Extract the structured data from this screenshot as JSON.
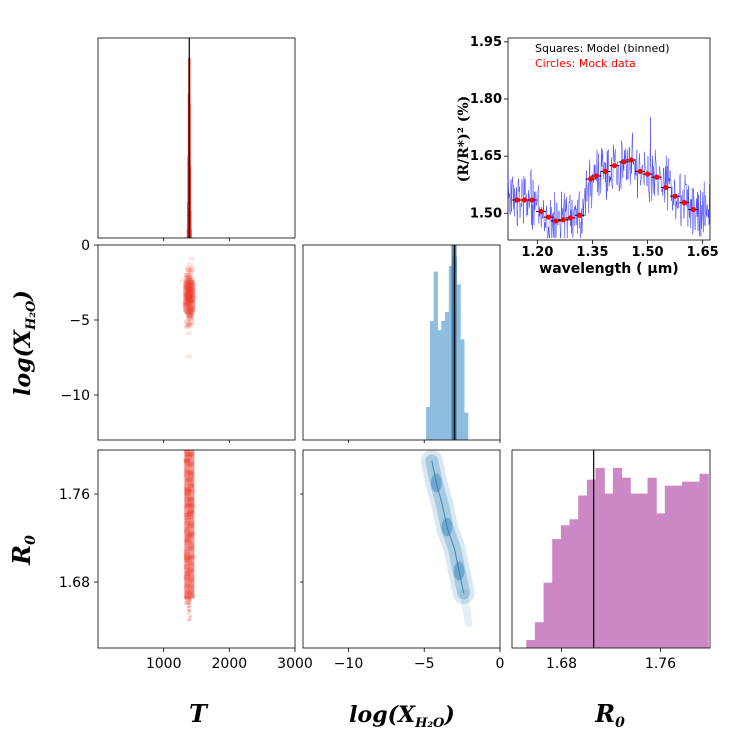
{
  "chart_data": [
    {
      "type": "histogram",
      "name": "T marginal posterior",
      "xlim": [
        0,
        3000
      ],
      "x_ticks": [
        "1000",
        "2000",
        "3000"
      ],
      "truth": 1390,
      "bins": [
        {
          "x": 1370,
          "h": 0.05
        },
        {
          "x": 1375,
          "h": 0.2
        },
        {
          "x": 1380,
          "h": 0.45
        },
        {
          "x": 1385,
          "h": 0.8
        },
        {
          "x": 1390,
          "h": 1.0
        },
        {
          "x": 1395,
          "h": 0.75
        },
        {
          "x": 1400,
          "h": 0.4
        },
        {
          "x": 1405,
          "h": 0.15
        },
        {
          "x": 1410,
          "h": 0.05
        }
      ],
      "color": "#d73027"
    },
    {
      "type": "scatter_density",
      "name": "T vs log(X_H2O)",
      "xlim": [
        0,
        3000
      ],
      "ylim": [
        -13,
        0
      ],
      "y_ticks": [
        "0",
        "−5",
        "−10"
      ],
      "y_tick_values": [
        0,
        -5,
        -10
      ],
      "center": [
        1390,
        -3.5
      ],
      "spread": [
        45,
        0.9
      ],
      "color": "#ef3b2c"
    },
    {
      "type": "histogram",
      "name": "log(X_H2O) marginal posterior",
      "xlim": [
        -13,
        0
      ],
      "truth": -3.0,
      "bins": [
        {
          "x": -4.75,
          "h": 0.18
        },
        {
          "x": -4.5,
          "h": 0.65
        },
        {
          "x": -4.25,
          "h": 0.92
        },
        {
          "x": -4.0,
          "h": 0.6
        },
        {
          "x": -3.75,
          "h": 0.65
        },
        {
          "x": -3.5,
          "h": 0.7
        },
        {
          "x": -3.25,
          "h": 0.95
        },
        {
          "x": -3.0,
          "h": 1.0
        },
        {
          "x": -2.75,
          "h": 0.85
        },
        {
          "x": -2.5,
          "h": 0.55
        },
        {
          "x": -2.25,
          "h": 0.15
        }
      ],
      "color": "#8fbde0"
    },
    {
      "type": "scatter_density",
      "name": "T vs R0",
      "xlim": [
        0,
        3000
      ],
      "ylim": [
        1.62,
        1.8
      ],
      "y_ticks": [
        "1.76",
        "1.68"
      ],
      "y_tick_values": [
        1.76,
        1.68
      ],
      "x_ticks": [
        "1000",
        "2000",
        "3000"
      ],
      "x_tick_values": [
        1000,
        2000,
        3000
      ],
      "center": [
        1390,
        1.73
      ],
      "spread": [
        40,
        0.04
      ],
      "color": "#ef3b2c"
    },
    {
      "type": "contour_density",
      "name": "log(X_H2O) vs R0",
      "xlim": [
        -13,
        0
      ],
      "ylim": [
        1.62,
        1.8
      ],
      "x_ticks": [
        "−10",
        "−5",
        "0"
      ],
      "x_tick_values": [
        -10,
        -5,
        0
      ],
      "ridge": [
        [
          -4.5,
          1.79
        ],
        [
          -4.2,
          1.77
        ],
        [
          -3.8,
          1.75
        ],
        [
          -3.5,
          1.73
        ],
        [
          -3.0,
          1.71
        ],
        [
          -2.7,
          1.69
        ],
        [
          -2.4,
          1.67
        ]
      ],
      "color": "#2c7fb8"
    },
    {
      "type": "histogram",
      "name": "R0 marginal posterior",
      "xlim": [
        1.64,
        1.8
      ],
      "x_ticks": [
        "1.68",
        "1.76"
      ],
      "x_tick_values": [
        1.68,
        1.76
      ],
      "truth": 1.706,
      "bins": [
        {
          "x": 1.655,
          "h": 0.04
        },
        {
          "x": 1.662,
          "h": 0.13
        },
        {
          "x": 1.669,
          "h": 0.33
        },
        {
          "x": 1.676,
          "h": 0.55
        },
        {
          "x": 1.683,
          "h": 0.62
        },
        {
          "x": 1.69,
          "h": 0.65
        },
        {
          "x": 1.697,
          "h": 0.77
        },
        {
          "x": 1.704,
          "h": 0.85
        },
        {
          "x": 1.711,
          "h": 0.91
        },
        {
          "x": 1.718,
          "h": 0.78
        },
        {
          "x": 1.725,
          "h": 0.91
        },
        {
          "x": 1.732,
          "h": 0.86
        },
        {
          "x": 1.739,
          "h": 0.78
        },
        {
          "x": 1.746,
          "h": 0.78
        },
        {
          "x": 1.753,
          "h": 0.86
        },
        {
          "x": 1.76,
          "h": 0.68
        },
        {
          "x": 1.767,
          "h": 0.82
        },
        {
          "x": 1.774,
          "h": 0.82
        },
        {
          "x": 1.781,
          "h": 0.84
        },
        {
          "x": 1.788,
          "h": 0.84
        },
        {
          "x": 1.795,
          "h": 0.88
        }
      ],
      "color": "#cc88c4"
    },
    {
      "type": "line",
      "name": "transmission spectrum",
      "xlabel": "wavelength ( μm)",
      "ylabel": "(R/R*)² (%)",
      "xlim": [
        1.12,
        1.67
      ],
      "ylim": [
        1.43,
        1.96
      ],
      "x_ticks": [
        "1.20",
        "1.35",
        "1.50",
        "1.65"
      ],
      "x_tick_values": [
        1.2,
        1.35,
        1.5,
        1.65
      ],
      "y_ticks": [
        "1.50",
        "1.65",
        "1.80",
        "1.95"
      ],
      "y_tick_values": [
        1.5,
        1.65,
        1.8,
        1.95
      ],
      "legend": [
        "Squares: Model (binned)",
        "Circles: Mock data"
      ],
      "legend_colors": [
        "#000000",
        "#ff0000"
      ],
      "model_color": "#1f1fff",
      "data_color": "#ff0000",
      "binned": [
        {
          "x": 1.145,
          "y": 1.535
        },
        {
          "x": 1.165,
          "y": 1.535
        },
        {
          "x": 1.185,
          "y": 1.535
        },
        {
          "x": 1.21,
          "y": 1.505
        },
        {
          "x": 1.23,
          "y": 1.49
        },
        {
          "x": 1.25,
          "y": 1.48
        },
        {
          "x": 1.27,
          "y": 1.483
        },
        {
          "x": 1.29,
          "y": 1.488
        },
        {
          "x": 1.315,
          "y": 1.495
        },
        {
          "x": 1.345,
          "y": 1.59
        },
        {
          "x": 1.36,
          "y": 1.598
        },
        {
          "x": 1.385,
          "y": 1.61
        },
        {
          "x": 1.41,
          "y": 1.625
        },
        {
          "x": 1.435,
          "y": 1.635
        },
        {
          "x": 1.455,
          "y": 1.64
        },
        {
          "x": 1.48,
          "y": 1.61
        },
        {
          "x": 1.5,
          "y": 1.603
        },
        {
          "x": 1.525,
          "y": 1.595
        },
        {
          "x": 1.55,
          "y": 1.568
        },
        {
          "x": 1.575,
          "y": 1.545
        },
        {
          "x": 1.6,
          "y": 1.528
        },
        {
          "x": 1.625,
          "y": 1.51
        }
      ]
    }
  ],
  "labels": {
    "x_T": "T",
    "x_logX": "log(X",
    "x_logX_sub": "H₂O",
    "x_logX_close": ")",
    "x_R0": "R",
    "x_R0_sub": "0",
    "y_logX": "log(X",
    "y_logX_sub": "H₂O",
    "y_logX_close": ")",
    "y_R0": "R",
    "y_R0_sub": "0"
  }
}
